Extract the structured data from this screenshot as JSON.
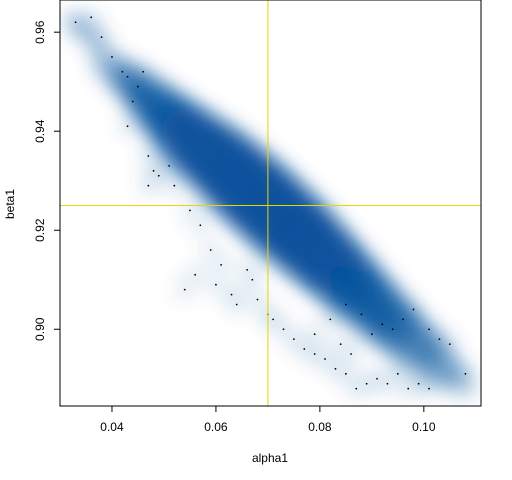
{
  "chart_data": {
    "type": "scatter",
    "style": "smoothed density scatter (blue), with isolated outlier dots",
    "xlabel": "alpha1",
    "ylabel": "beta1",
    "xlim": [
      0.03,
      0.111
    ],
    "ylim": [
      0.8845,
      0.9665
    ],
    "x_ticks": [
      0.04,
      0.06,
      0.08,
      0.1
    ],
    "x_tick_labels": [
      "0.04",
      "0.06",
      "0.08",
      "0.10"
    ],
    "y_ticks": [
      0.9,
      0.92,
      0.94,
      0.96
    ],
    "y_tick_labels": [
      "0.90",
      "0.92",
      "0.94",
      "0.96"
    ],
    "reference_lines": {
      "x": 0.07,
      "y": 0.925,
      "color": "#e8d400"
    },
    "density_color": "#08519c",
    "density_ridge": [
      {
        "x": 0.035,
        "y": 0.96,
        "spread": 0.004,
        "weight": 0.25
      },
      {
        "x": 0.042,
        "y": 0.951,
        "spread": 0.006,
        "weight": 0.35
      },
      {
        "x": 0.048,
        "y": 0.946,
        "spread": 0.008,
        "weight": 0.5
      },
      {
        "x": 0.053,
        "y": 0.941,
        "spread": 0.01,
        "weight": 0.7
      },
      {
        "x": 0.058,
        "y": 0.936,
        "spread": 0.012,
        "weight": 0.85
      },
      {
        "x": 0.063,
        "y": 0.932,
        "spread": 0.013,
        "weight": 0.95
      },
      {
        "x": 0.068,
        "y": 0.927,
        "spread": 0.014,
        "weight": 1.0
      },
      {
        "x": 0.073,
        "y": 0.922,
        "spread": 0.014,
        "weight": 0.95
      },
      {
        "x": 0.078,
        "y": 0.917,
        "spread": 0.013,
        "weight": 0.85
      },
      {
        "x": 0.083,
        "y": 0.912,
        "spread": 0.012,
        "weight": 0.7
      },
      {
        "x": 0.088,
        "y": 0.907,
        "spread": 0.011,
        "weight": 0.55
      },
      {
        "x": 0.093,
        "y": 0.902,
        "spread": 0.01,
        "weight": 0.4
      },
      {
        "x": 0.098,
        "y": 0.897,
        "spread": 0.009,
        "weight": 0.3
      },
      {
        "x": 0.104,
        "y": 0.892,
        "spread": 0.006,
        "weight": 0.2
      }
    ],
    "points": [
      [
        0.033,
        0.962
      ],
      [
        0.036,
        0.963
      ],
      [
        0.038,
        0.959
      ],
      [
        0.04,
        0.955
      ],
      [
        0.042,
        0.952
      ],
      [
        0.043,
        0.951
      ],
      [
        0.045,
        0.949
      ],
      [
        0.046,
        0.952
      ],
      [
        0.044,
        0.946
      ],
      [
        0.043,
        0.941
      ],
      [
        0.047,
        0.935
      ],
      [
        0.048,
        0.932
      ],
      [
        0.047,
        0.929
      ],
      [
        0.049,
        0.931
      ],
      [
        0.051,
        0.933
      ],
      [
        0.052,
        0.929
      ],
      [
        0.055,
        0.924
      ],
      [
        0.057,
        0.921
      ],
      [
        0.059,
        0.916
      ],
      [
        0.061,
        0.913
      ],
      [
        0.056,
        0.911
      ],
      [
        0.054,
        0.908
      ],
      [
        0.06,
        0.909
      ],
      [
        0.063,
        0.907
      ],
      [
        0.064,
        0.905
      ],
      [
        0.066,
        0.912
      ],
      [
        0.067,
        0.91
      ],
      [
        0.068,
        0.906
      ],
      [
        0.07,
        0.903
      ],
      [
        0.071,
        0.902
      ],
      [
        0.073,
        0.9
      ],
      [
        0.075,
        0.898
      ],
      [
        0.077,
        0.896
      ],
      [
        0.079,
        0.895
      ],
      [
        0.081,
        0.894
      ],
      [
        0.083,
        0.892
      ],
      [
        0.085,
        0.891
      ],
      [
        0.087,
        0.888
      ],
      [
        0.089,
        0.889
      ],
      [
        0.091,
        0.89
      ],
      [
        0.093,
        0.889
      ],
      [
        0.095,
        0.891
      ],
      [
        0.097,
        0.888
      ],
      [
        0.099,
        0.889
      ],
      [
        0.101,
        0.888
      ],
      [
        0.09,
        0.899
      ],
      [
        0.092,
        0.901
      ],
      [
        0.094,
        0.9
      ],
      [
        0.096,
        0.902
      ],
      [
        0.098,
        0.904
      ],
      [
        0.101,
        0.9
      ],
      [
        0.103,
        0.898
      ],
      [
        0.105,
        0.897
      ],
      [
        0.108,
        0.891
      ],
      [
        0.088,
        0.903
      ],
      [
        0.085,
        0.905
      ],
      [
        0.082,
        0.902
      ],
      [
        0.079,
        0.899
      ],
      [
        0.086,
        0.895
      ],
      [
        0.084,
        0.897
      ]
    ]
  }
}
